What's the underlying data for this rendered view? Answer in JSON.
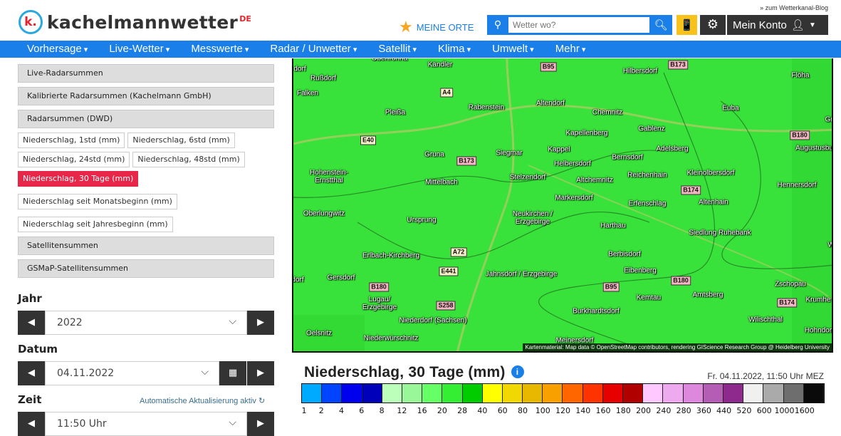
{
  "header": {
    "blog_link": "» zum Wetterkanal-Blog",
    "logo_mark": "k.",
    "logo_text": "kachelmannwetter",
    "logo_suffix": "DE",
    "meine_orte": "MEINE ORTE",
    "search_placeholder": "Wetter wo?",
    "account": "Mein Konto"
  },
  "nav": [
    "Vorhersage",
    "Live-Wetter",
    "Messwerte",
    "Radar / Unwetter",
    "Satellit",
    "Klima",
    "Umwelt",
    "Mehr"
  ],
  "sidebar": {
    "groups": [
      "Live-Radarsummen",
      "Kalibrierte Radarsummen (Kachelmann GmbH)",
      "Radarsummen (DWD)"
    ],
    "chips": [
      "Niederschlag, 1std (mm)",
      "Niederschlag, 6std (mm)",
      "Niederschlag, 24std (mm)",
      "Niederschlag, 48std (mm)",
      "Niederschlag, 30 Tage (mm)",
      "Niederschlag seit Monatsbeginn (mm)",
      "Niederschlag seit Jahresbeginn (mm)"
    ],
    "active_chip": "Niederschlag, 30 Tage (mm)",
    "groups2": [
      "Satellitensummen",
      "GSMaP-Satellitensummen"
    ],
    "jahr_label": "Jahr",
    "jahr_value": "2022",
    "datum_label": "Datum",
    "datum_value": "04.11.2022",
    "zeit_label": "Zeit",
    "zeit_value": "11:50 Uhr",
    "auto_update": "Automatische Aktualisierung aktiv"
  },
  "map": {
    "towns": [
      "Oberfrohna",
      "Kändler",
      "Hilbersdorf",
      "Flöha",
      "dorf",
      "Rußdorf",
      "Altendorf",
      "Falken",
      "Rabenstein",
      "Chemnitz",
      "Euba",
      "Pleißa",
      "Kapellenberg",
      "Gablenz",
      "Grü",
      "Gruna",
      "Siegmar",
      "Kappel",
      "Adelsberg",
      "Augustusburg",
      "Bernsdorf",
      "Helbersdorf",
      "Hohenstein-\nErnstthal",
      "Stelzendorf",
      "Altchemnitz",
      "Reichenhain",
      "Kleinolbersdorf",
      "Mittelbach",
      "Hennersdorf",
      "Markersdorf",
      "Erfenschlag",
      "Altenhain",
      "Oberlungwitz",
      "Ursprung",
      "Neukirchen /\nErzgebirge",
      "Harthau",
      "Siedlung Ruhebank",
      "Erlbach-Kirchberg",
      "Berbisdorf",
      "Jahnsdorf / Erzgebirge",
      "Eibenberg",
      "Gersdorf",
      "Zschopau",
      "Lugau/\nErzgebirge",
      "Kemtau",
      "Amtsberg",
      "Krumhe",
      "Burkhardtsdorf",
      "Niederdorf (Sachsen)",
      "Wilischthal",
      "Oelsnitz",
      "Niederwürschnitz",
      "Meinersdorf",
      "Hohndor",
      "dorf",
      "W"
    ],
    "roads": [
      "B95",
      "B173",
      "A4",
      "B180",
      "E40",
      "B173",
      "B174",
      "A72",
      "E441",
      "B180",
      "B180",
      "B95",
      "S258",
      "B174"
    ],
    "attribution": "Kartenmaterial: Map data © OpenStreetMap contributors, rendering GIScience Research Group @ Heidelberg University"
  },
  "legend": {
    "title": "Niederschlag, 30 Tage (mm)",
    "timestamp": "Fr. 04.11.2022, 11:50 Uhr MEZ",
    "colors": [
      "#00aaff",
      "#0044ff",
      "#0000ee",
      "#0000bb",
      "#bbffbb",
      "#99f799",
      "#66ff66",
      "#33ee33",
      "#00cc00",
      "#ffff00",
      "#f0d800",
      "#e8b800",
      "#f8a000",
      "#ff6600",
      "#ff3300",
      "#e60000",
      "#b00000",
      "#ffc8ff",
      "#eeaaee",
      "#dd88dd",
      "#b55db5",
      "#8e2a8e",
      "#f0f0f0",
      "#aaaaaa",
      "#6e6e6e",
      "#0a0a0a"
    ],
    "ticks": [
      "1",
      "2",
      "4",
      "6",
      "8",
      "12",
      "16",
      "20",
      "28",
      "40",
      "60",
      "80",
      "100",
      "120",
      "140",
      "160",
      "180",
      "200",
      "240",
      "280",
      "360",
      "440",
      "520",
      "600",
      "1000",
      "1600"
    ]
  }
}
